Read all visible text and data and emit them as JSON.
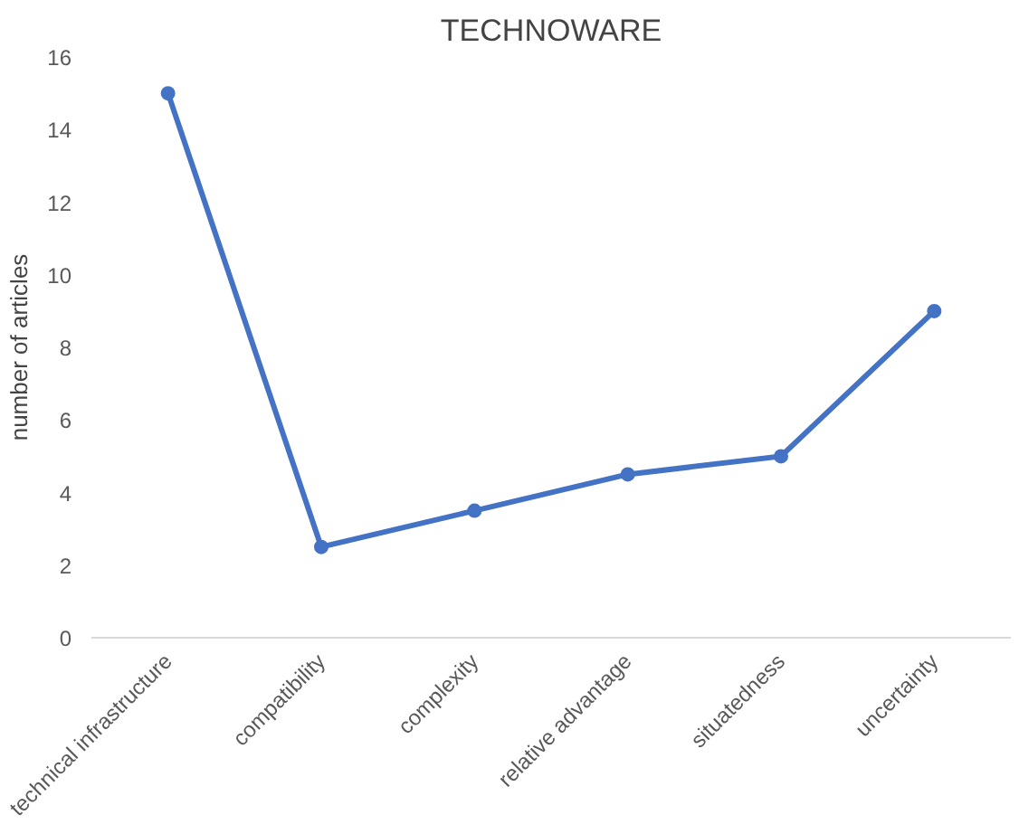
{
  "chart_data": {
    "type": "line",
    "title": "TECHNOWARE",
    "ylabel": "number of articles",
    "categories": [
      "technical infrastructure",
      "compatibility",
      "complexity",
      "relative advantage",
      "situatedness",
      "uncertainty"
    ],
    "values": [
      15,
      2.5,
      3.5,
      4.5,
      5,
      9
    ],
    "color": "#4472c4",
    "marker": "circle",
    "line_style": "solid",
    "ylim": [
      0,
      16
    ],
    "yticks": [
      0,
      2,
      4,
      6,
      8,
      10,
      12,
      14,
      16
    ],
    "grid": false
  }
}
